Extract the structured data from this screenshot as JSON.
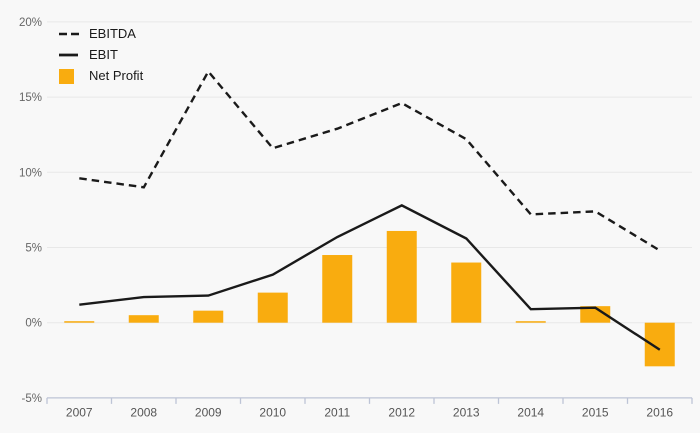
{
  "chart_data": {
    "type": "combo-bar-line",
    "title": "",
    "categories": [
      "2007",
      "2008",
      "2009",
      "2010",
      "2011",
      "2012",
      "2013",
      "2014",
      "2015",
      "2016"
    ],
    "series": [
      {
        "name": "EBITDA",
        "kind": "line",
        "dash": true,
        "color": "#1a1a1a",
        "values": [
          9.6,
          9.0,
          16.7,
          11.6,
          12.9,
          14.6,
          12.2,
          7.2,
          7.4,
          4.8
        ]
      },
      {
        "name": "EBIT",
        "kind": "line",
        "dash": false,
        "color": "#1a1a1a",
        "values": [
          1.2,
          1.7,
          1.8,
          3.2,
          5.7,
          7.8,
          5.6,
          0.9,
          1.0,
          -1.8
        ]
      },
      {
        "name": "Net Profit",
        "kind": "bar",
        "color": "#F9AC0F",
        "values": [
          0.1,
          0.5,
          0.8,
          2.0,
          4.5,
          6.1,
          4.0,
          0.1,
          1.1,
          -2.9
        ]
      }
    ],
    "ylim": [
      -5,
      20
    ],
    "y_ticks": [
      {
        "value": 20,
        "label": "20%"
      },
      {
        "value": 15,
        "label": "15%"
      },
      {
        "value": 10,
        "label": "10%"
      },
      {
        "value": 5,
        "label": "5%"
      },
      {
        "value": 0,
        "label": "0%"
      },
      {
        "value": -5,
        "label": "-5%"
      }
    ],
    "grid": true,
    "legend_position": "top-left",
    "unit": "%"
  },
  "colors": {
    "background": "#f8f8f8",
    "grid": "#e8e8e8",
    "axis": "#bdc4d6",
    "y_tick_text": "#666666",
    "x_tick_text": "#555555",
    "legend_text": "#1a1a1a",
    "bar": "#F9AC0F",
    "line": "#1a1a1a"
  }
}
